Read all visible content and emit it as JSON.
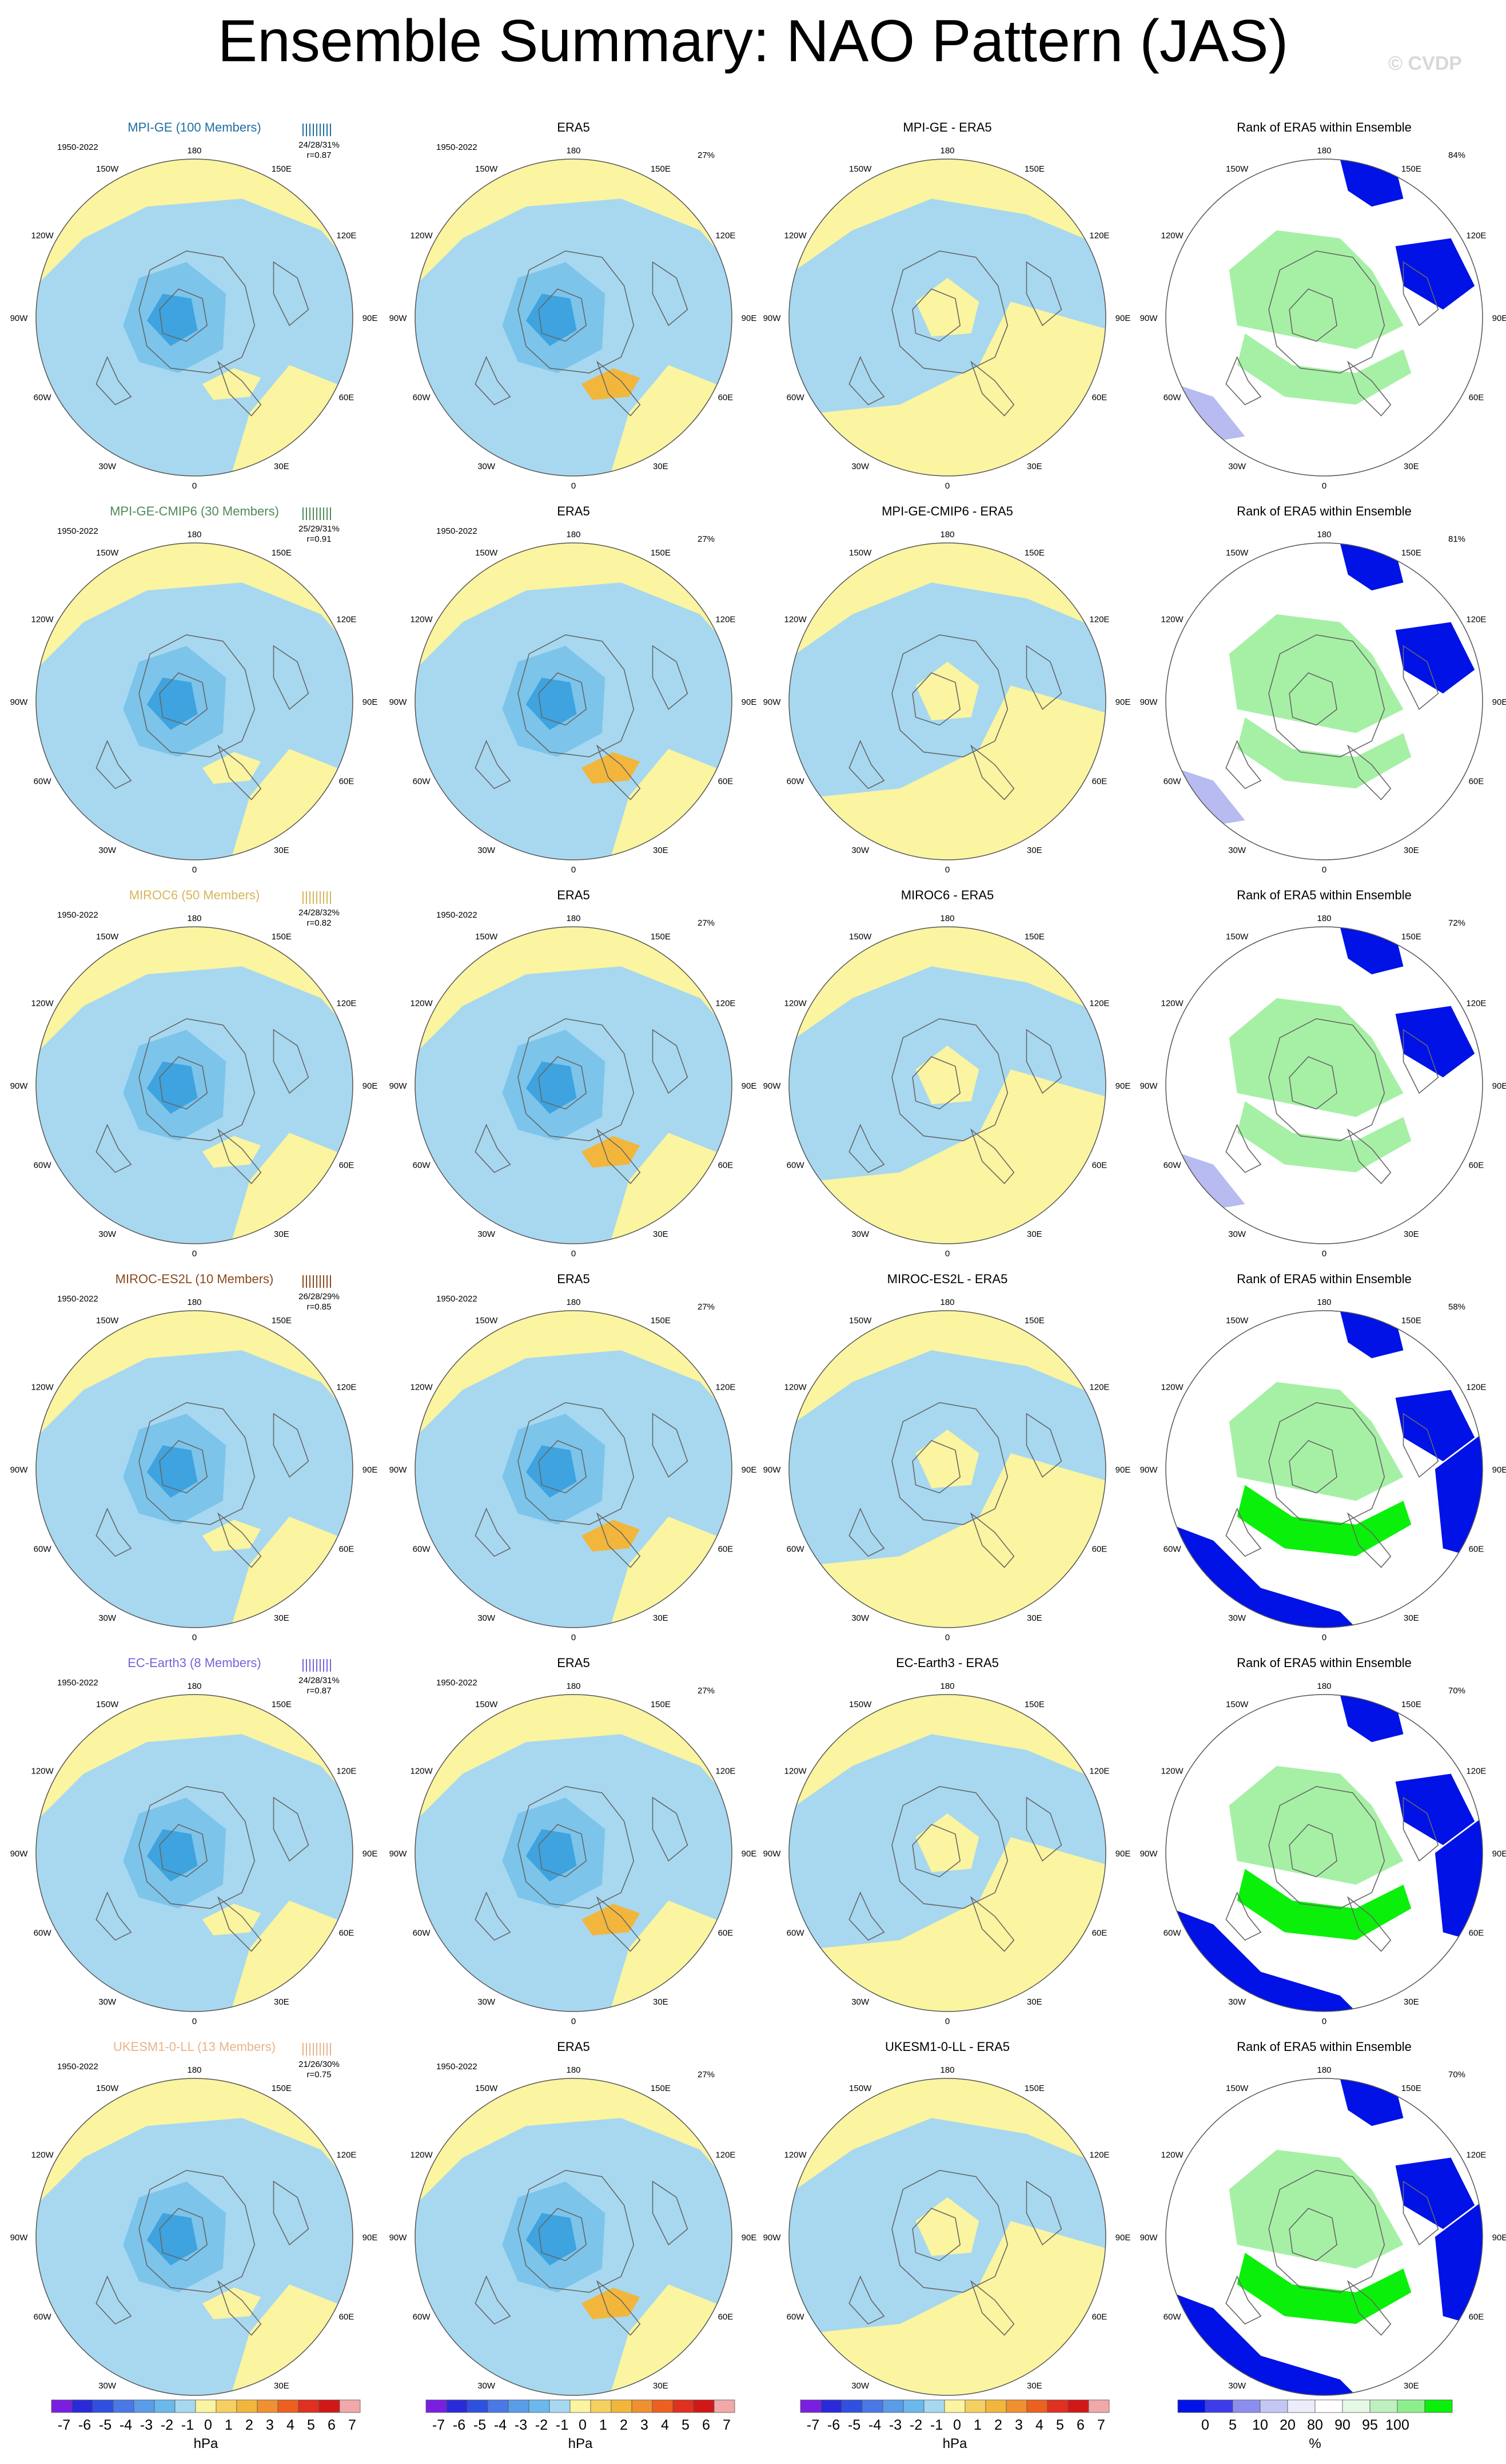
{
  "title": "Ensemble Summary: NAO Pattern (JAS)",
  "watermark": "© CVDP",
  "colors": {
    "pos": "#fbf4a0",
    "neg": "#a7d8f0",
    "neg2": "#7cc4ea",
    "neg3": "#3ea3de",
    "posorange": "#f2b63c",
    "coast": "#666666",
    "rank_blue": "#0012e6",
    "rank_lightblue": "#b8bbf0",
    "rank_green": "#0af00a",
    "rank_lightgreen": "#a6f0a6"
  },
  "lon_labels": {
    "top": "180",
    "bottom": "0",
    "ul1": "150W",
    "ur1": "150E",
    "ul2": "120W",
    "ur2": "120E",
    "l": "90W",
    "r": "90E",
    "ll1": "60W",
    "lr1": "60E",
    "ll2": "30W",
    "lr2": "30E"
  },
  "period": "1950-2022",
  "era5_pct": "27%",
  "rows": [
    {
      "model": "MPI-GE (100 Members)",
      "model_color": "#1f6fa0",
      "stats": "24/28/31%",
      "r": "r=0.87",
      "era5": "ERA5",
      "diff": "MPI-GE - ERA5",
      "rank": "Rank of ERA5 within Ensemble",
      "rank_pct": "84%"
    },
    {
      "model": "MPI-GE-CMIP6 (30 Members)",
      "model_color": "#4f8a5a",
      "stats": "25/29/31%",
      "r": "r=0.91",
      "era5": "ERA5",
      "diff": "MPI-GE-CMIP6 - ERA5",
      "rank": "Rank of ERA5 within Ensemble",
      "rank_pct": "81%"
    },
    {
      "model": "MIROC6 (50 Members)",
      "model_color": "#d6b65c",
      "stats": "24/28/32%",
      "r": "r=0.82",
      "era5": "ERA5",
      "diff": "MIROC6 - ERA5",
      "rank": "Rank of ERA5 within Ensemble",
      "rank_pct": "72%"
    },
    {
      "model": "MIROC-ES2L (10 Members)",
      "model_color": "#8a4a1c",
      "stats": "26/28/29%",
      "r": "r=0.85",
      "era5": "ERA5",
      "diff": "MIROC-ES2L - ERA5",
      "rank": "Rank of ERA5 within Ensemble",
      "rank_pct": "58%"
    },
    {
      "model": "EC-Earth3 (8 Members)",
      "model_color": "#7a62d8",
      "stats": "24/28/31%",
      "r": "r=0.87",
      "era5": "ERA5",
      "diff": "EC-Earth3 - ERA5",
      "rank": "Rank of ERA5 within Ensemble",
      "rank_pct": "70%"
    },
    {
      "model": "UKESM1-0-LL (13 Members)",
      "model_color": "#e8b48a",
      "stats": "21/26/30%",
      "r": "r=0.75",
      "era5": "ERA5",
      "diff": "UKESM1-0-LL - ERA5",
      "rank": "Rank of ERA5 within Ensemble",
      "rank_pct": "70%"
    }
  ],
  "colorbar_hpa": {
    "colors": [
      "#7a1fe0",
      "#2a2ad8",
      "#3050e0",
      "#4a78e6",
      "#5a9ce8",
      "#6ab8ec",
      "#a7d8f0",
      "#fbf4a0",
      "#f5d060",
      "#f2b63c",
      "#f09030",
      "#ec6020",
      "#e03020",
      "#d01818",
      "#f0a8a8"
    ],
    "labels": [
      "-7",
      "-6",
      "-5",
      "-4",
      "-3",
      "-2",
      "-1",
      "0",
      "1",
      "2",
      "3",
      "4",
      "5",
      "6",
      "7"
    ],
    "units": "hPa"
  },
  "colorbar_rank": {
    "colors": [
      "#0012e6",
      "#3c3ce8",
      "#8b8eee",
      "#c4c6f4",
      "#ececfa",
      "#ffffff",
      "#e6f8e6",
      "#bff0bf",
      "#8cef8c",
      "#0af00a"
    ],
    "labels": [
      "0",
      "5",
      "10",
      "20",
      "80",
      "90",
      "95",
      "100"
    ],
    "units": "%"
  }
}
